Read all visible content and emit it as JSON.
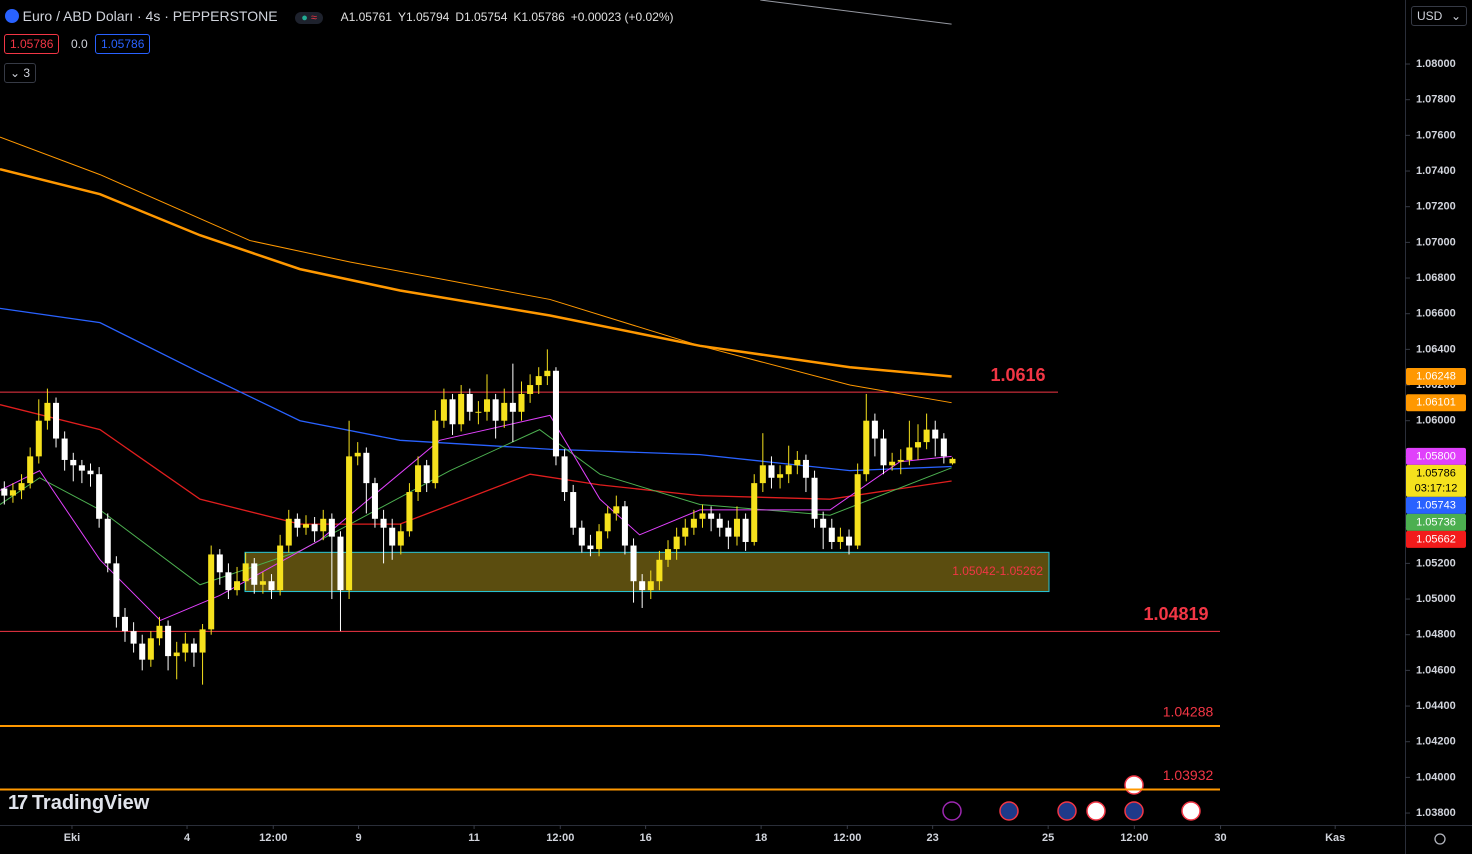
{
  "header": {
    "symbol": "Euro / ABD Doları · 4s · PEPPERSTONE",
    "ohlc": [
      "A1.05761",
      "Y1.05794",
      "D1.05754",
      "K1.05786",
      "+0.00023 (+0.02%)"
    ],
    "sell": "1.05786",
    "spread": "0.0",
    "buy": "1.05786",
    "indicator_count": "3",
    "currency": "USD",
    "logo": "TradingView"
  },
  "chart_data": {
    "type": "candlestick",
    "up_color": "#f5e11d",
    "down_color": "#ffffff",
    "xlim": [
      -0.5,
      162.5
    ],
    "xticks": [
      {
        "value": 7.85,
        "label": "Eki"
      },
      {
        "value": 21.2,
        "label": "4"
      },
      {
        "value": 31.2,
        "label": "12:00"
      },
      {
        "value": 41.1,
        "label": "9"
      },
      {
        "value": 54.5,
        "label": "11"
      },
      {
        "value": 64.5,
        "label": "12:00"
      },
      {
        "value": 74.4,
        "label": "16"
      },
      {
        "value": 87.8,
        "label": "18"
      },
      {
        "value": 97.8,
        "label": "12:00"
      },
      {
        "value": 107.7,
        "label": "23"
      },
      {
        "value": 121.1,
        "label": "25"
      },
      {
        "value": 131.1,
        "label": "12:00"
      },
      {
        "value": 141.1,
        "label": "30"
      },
      {
        "value": 154.4,
        "label": "Kas"
      }
    ],
    "ylim": [
      1.03733,
      1.08359
    ],
    "yticks": [
      {
        "value": 1.08,
        "label": "1.08000"
      },
      {
        "value": 1.078,
        "label": "1.07800"
      },
      {
        "value": 1.076,
        "label": "1.07600"
      },
      {
        "value": 1.074,
        "label": "1.07400"
      },
      {
        "value": 1.072,
        "label": "1.07200"
      },
      {
        "value": 1.07,
        "label": "1.07000"
      },
      {
        "value": 1.068,
        "label": "1.06800"
      },
      {
        "value": 1.066,
        "label": "1.06600"
      },
      {
        "value": 1.064,
        "label": "1.06400"
      },
      {
        "value": 1.062,
        "label": "1.06200"
      },
      {
        "value": 1.06,
        "label": "1.06000"
      },
      {
        "value": 1.058,
        "label": "1.05800"
      },
      {
        "value": 1.056,
        "label": "1.05600"
      },
      {
        "value": 1.054,
        "label": "1.05400"
      },
      {
        "value": 1.052,
        "label": "1.05200"
      },
      {
        "value": 1.05,
        "label": "1.05000"
      },
      {
        "value": 1.048,
        "label": "1.04800"
      },
      {
        "value": 1.046,
        "label": "1.04600"
      },
      {
        "value": 1.044,
        "label": "1.04400"
      },
      {
        "value": 1.042,
        "label": "1.04200"
      },
      {
        "value": 1.04,
        "label": "1.04000"
      },
      {
        "value": 1.038,
        "label": "1.03800"
      }
    ],
    "open": [
      1.0562,
      1.0558,
      1.0561,
      1.0565,
      1.058,
      1.06,
      1.061,
      1.059,
      1.0578,
      1.0575,
      1.0572,
      1.057,
      1.0545,
      1.052,
      1.049,
      1.0482,
      1.0475,
      1.0466,
      1.0478,
      1.0485,
      1.0468,
      1.047,
      1.0475,
      1.047,
      1.0483,
      1.0525,
      1.0515,
      1.0505,
      1.051,
      1.052,
      1.0508,
      1.051,
      1.0505,
      1.053,
      1.0545,
      1.054,
      1.0542,
      1.0538,
      1.0545,
      1.0535,
      1.0505,
      1.058,
      1.0582,
      1.0565,
      1.0545,
      1.054,
      1.053,
      1.0538,
      1.056,
      1.0575,
      1.0565,
      1.06,
      1.0612,
      1.0598,
      1.0615,
      1.0605,
      1.0605,
      1.0612,
      1.06,
      1.061,
      1.0605,
      1.0615,
      1.062,
      1.0625,
      1.0628,
      1.058,
      1.056,
      1.054,
      1.053,
      1.0528,
      1.0538,
      1.0548,
      1.0552,
      1.053,
      1.051,
      1.0505,
      1.051,
      1.0522,
      1.0528,
      1.0535,
      1.054,
      1.0545,
      1.0548,
      1.0545,
      1.054,
      1.0535,
      1.0545,
      1.0532,
      1.0565,
      1.0575,
      1.0568,
      1.057,
      1.0575,
      1.0578,
      1.0568,
      1.0545,
      1.054,
      1.0532,
      1.0535,
      1.053,
      1.057,
      1.06,
      1.059,
      1.0575,
      1.0577,
      1.0578,
      1.0585,
      1.0588,
      1.0595,
      1.059,
      1.05761
    ],
    "high": [
      1.0566,
      1.0565,
      1.057,
      1.0585,
      1.0612,
      1.0618,
      1.0613,
      1.0594,
      1.0582,
      1.0578,
      1.0576,
      1.0574,
      1.0548,
      1.0524,
      1.0495,
      1.0487,
      1.048,
      1.0482,
      1.049,
      1.0488,
      1.0476,
      1.0481,
      1.0478,
      1.0486,
      1.053,
      1.0528,
      1.052,
      1.0518,
      1.0526,
      1.0523,
      1.0515,
      1.0514,
      1.0536,
      1.055,
      1.0548,
      1.0547,
      1.0546,
      1.055,
      1.0548,
      1.0538,
      1.06,
      1.0588,
      1.0585,
      1.0568,
      1.055,
      1.0545,
      1.0542,
      1.0565,
      1.058,
      1.0578,
      1.0606,
      1.0618,
      1.0615,
      1.062,
      1.0618,
      1.0611,
      1.0626,
      1.0615,
      1.0618,
      1.0632,
      1.0622,
      1.0626,
      1.063,
      1.064,
      1.063,
      1.0584,
      1.0564,
      1.0544,
      1.0536,
      1.0542,
      1.0552,
      1.0558,
      1.0555,
      1.0534,
      1.0514,
      1.0516,
      1.0527,
      1.0533,
      1.054,
      1.0545,
      1.055,
      1.0553,
      1.0552,
      1.0548,
      1.0544,
      1.0552,
      1.0548,
      1.057,
      1.0593,
      1.058,
      1.0575,
      1.0586,
      1.0583,
      1.0581,
      1.0572,
      1.0549,
      1.0545,
      1.054,
      1.0539,
      1.0576,
      1.0615,
      1.0604,
      1.0595,
      1.0582,
      1.0584,
      1.06,
      1.0598,
      1.0604,
      1.06,
      1.0593,
      1.05794
    ],
    "low": [
      1.0553,
      1.0554,
      1.0556,
      1.0562,
      1.0576,
      1.0595,
      1.0585,
      1.0572,
      1.0566,
      1.0565,
      1.0563,
      1.054,
      1.0515,
      1.0484,
      1.0476,
      1.047,
      1.046,
      1.0462,
      1.0474,
      1.046,
      1.0455,
      1.0465,
      1.0462,
      1.0452,
      1.048,
      1.0508,
      1.05,
      1.0502,
      1.0505,
      1.0503,
      1.0503,
      1.05,
      1.0502,
      1.0526,
      1.0535,
      1.0536,
      1.0532,
      1.0533,
      1.05,
      1.0482,
      1.05,
      1.0575,
      1.0548,
      1.054,
      1.052,
      1.0522,
      1.0525,
      1.0535,
      1.0555,
      1.056,
      1.0562,
      1.0596,
      1.0592,
      1.0594,
      1.06,
      1.0598,
      1.06,
      1.059,
      1.0596,
      1.0588,
      1.06,
      1.061,
      1.0615,
      1.062,
      1.0575,
      1.0555,
      1.0536,
      1.0526,
      1.0524,
      1.0524,
      1.0534,
      1.0544,
      1.0525,
      1.0498,
      1.0495,
      1.05,
      1.0505,
      1.0518,
      1.0522,
      1.053,
      1.0536,
      1.054,
      1.0538,
      1.0535,
      1.0528,
      1.053,
      1.0527,
      1.053,
      1.056,
      1.0562,
      1.0562,
      1.0565,
      1.057,
      1.056,
      1.054,
      1.0528,
      1.0528,
      1.0528,
      1.0525,
      1.0528,
      1.0566,
      1.058,
      1.057,
      1.0572,
      1.057,
      1.0575,
      1.0578,
      1.0584,
      1.058,
      1.0576,
      1.05754
    ],
    "close": [
      1.0558,
      1.0561,
      1.0565,
      1.058,
      1.06,
      1.061,
      1.059,
      1.0578,
      1.0575,
      1.0572,
      1.057,
      1.0545,
      1.052,
      1.049,
      1.0482,
      1.0475,
      1.0466,
      1.0478,
      1.0485,
      1.0468,
      1.047,
      1.0475,
      1.047,
      1.0483,
      1.0525,
      1.0515,
      1.0505,
      1.051,
      1.052,
      1.0508,
      1.051,
      1.0505,
      1.053,
      1.0545,
      1.054,
      1.0542,
      1.0538,
      1.0545,
      1.0535,
      1.0505,
      1.058,
      1.0582,
      1.0565,
      1.0545,
      1.054,
      1.053,
      1.0538,
      1.056,
      1.0575,
      1.0565,
      1.06,
      1.0612,
      1.0598,
      1.0615,
      1.0605,
      1.0605,
      1.0612,
      1.06,
      1.061,
      1.0605,
      1.0615,
      1.062,
      1.0625,
      1.0628,
      1.058,
      1.056,
      1.054,
      1.053,
      1.0528,
      1.0538,
      1.0548,
      1.0552,
      1.053,
      1.051,
      1.0505,
      1.051,
      1.0522,
      1.0528,
      1.0535,
      1.054,
      1.0545,
      1.0548,
      1.0545,
      1.054,
      1.0535,
      1.0545,
      1.0532,
      1.0565,
      1.0575,
      1.0568,
      1.057,
      1.0575,
      1.0578,
      1.0568,
      1.0545,
      1.054,
      1.0532,
      1.0535,
      1.053,
      1.057,
      1.06,
      1.059,
      1.0575,
      1.0577,
      1.0578,
      1.0585,
      1.0588,
      1.0595,
      1.059,
      1.058,
      1.05786
    ],
    "series": [
      {
        "color": "#ff9800",
        "width": 2.5,
        "x": [
          -0.5,
          11.1,
          22.7,
          34.3,
          45.9,
          63.3,
          80.7,
          98.1,
          109.9
        ],
        "values": [
          1.0741,
          1.0727,
          1.0704,
          1.0685,
          1.0673,
          1.0659,
          1.0642,
          1.063,
          1.06248
        ]
      },
      {
        "color": "#ff9800",
        "width": 1,
        "x": [
          -0.5,
          11.1,
          28.5,
          40.1,
          63.3,
          80.7,
          98.1,
          109.9
        ],
        "values": [
          1.0759,
          1.0738,
          1.0701,
          1.0689,
          1.0668,
          1.0642,
          1.062,
          1.06101
        ]
      },
      {
        "color": "#2962ff",
        "width": 1.3,
        "x": [
          -0.5,
          11.1,
          22.7,
          34.3,
          45.9,
          63.3,
          80.7,
          98.1,
          109.9
        ],
        "values": [
          1.0663,
          1.0655,
          1.0627,
          1.06,
          1.0589,
          1.0584,
          1.0581,
          1.0572,
          1.05743
        ]
      },
      {
        "color": "#e01e1e",
        "width": 1.3,
        "x": [
          -0.5,
          11.1,
          22.7,
          34.3,
          45.9,
          61,
          69.1,
          80.7,
          95.8,
          109.9
        ],
        "values": [
          1.0609,
          1.0595,
          1.0556,
          1.0542,
          1.0542,
          1.057,
          1.0564,
          1.0558,
          1.0556,
          1.05662
        ]
      },
      {
        "color": "#4caf50",
        "width": 1,
        "x": [
          -0.5,
          4.1,
          11.1,
          22.7,
          34.3,
          51.7,
          62.1,
          69.1,
          80.7,
          95.8,
          109.9
        ],
        "values": [
          1.0553,
          1.0568,
          1.055,
          1.0508,
          1.0527,
          1.0572,
          1.0595,
          1.057,
          1.0553,
          1.0547,
          1.05736
        ]
      },
      {
        "color": "#e040fb",
        "width": 1,
        "x": [
          -0.5,
          4.1,
          11.1,
          18.1,
          25,
          36.6,
          50.5,
          63.3,
          69.1,
          73.7,
          80.7,
          95.8,
          103.9,
          109.9
        ],
        "values": [
          1.0561,
          1.0572,
          1.0522,
          1.0488,
          1.0502,
          1.0533,
          1.0589,
          1.0603,
          1.0556,
          1.0536,
          1.055,
          1.055,
          1.0577,
          1.058
        ]
      }
    ],
    "trend_line": {
      "color": "#9598a1",
      "x": [
        87.7,
        109.9
      ],
      "values": [
        1.08359,
        1.08224
      ]
    },
    "levels": [
      {
        "value": 1.0616,
        "label": "1.0616",
        "color": "#f23645",
        "text_color": "#f23645"
      },
      {
        "value": 1.04819,
        "label": "1.04819",
        "color": "#f23645",
        "text_color": "#f23645"
      },
      {
        "value": 1.04288,
        "label": "1.04288",
        "color": "#ff9800",
        "text_color": "#f23645"
      },
      {
        "value": 1.03932,
        "label": "1.03932",
        "color": "#ff9800",
        "text_color": "#f23645"
      }
    ],
    "zone": {
      "low": 1.05042,
      "high": 1.05262,
      "label": "1.05042-1.05262",
      "color": "#6b5a12",
      "border": "#26c6da",
      "text_color": "#f23645"
    },
    "price_badges": [
      {
        "value": 1.06248,
        "label": "1.06248",
        "color": "#ff9800"
      },
      {
        "value": 1.06101,
        "label": "1.06101",
        "color": "#ff9800"
      },
      {
        "value": 1.058,
        "label": "1.05800",
        "color": "#e040fb"
      },
      {
        "value": 1.05786,
        "label": "1.05786",
        "countdown": "03:17:12",
        "color": "#f5e11d"
      },
      {
        "value": 1.05743,
        "label": "1.05743",
        "color": "#2962ff"
      },
      {
        "value": 1.05736,
        "label": "1.05736",
        "color": "#4caf50"
      },
      {
        "value": 1.05662,
        "label": "1.05662",
        "color": "#f21b1b"
      }
    ]
  }
}
